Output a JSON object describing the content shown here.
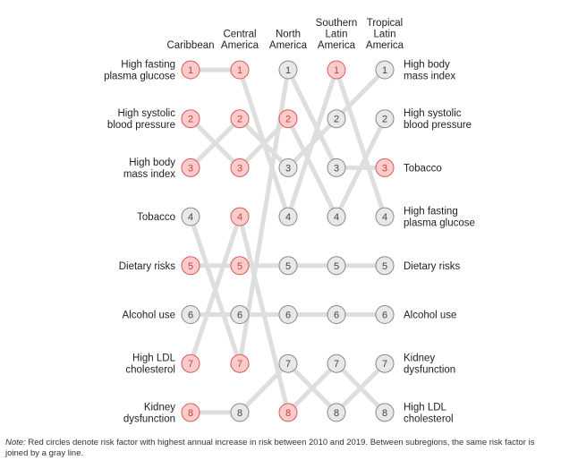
{
  "chart_data": {
    "type": "bump",
    "title": "",
    "subregions": [
      {
        "name": "Caribbean",
        "header": [
          "Caribbean"
        ]
      },
      {
        "name": "Central America",
        "header": [
          "Central",
          "America"
        ]
      },
      {
        "name": "North America",
        "header": [
          "North",
          "America"
        ]
      },
      {
        "name": "Southern Latin America",
        "header": [
          "Southern",
          "Latin",
          "America"
        ]
      },
      {
        "name": "Tropical Latin America",
        "header": [
          "Tropical",
          "Latin",
          "America"
        ]
      }
    ],
    "risk_factors": [
      {
        "name": "High fasting plasma glucose",
        "left_label": [
          "High fasting",
          "plasma glucose"
        ],
        "right_label": [
          "High fasting",
          "plasma glucose"
        ],
        "ranks": [
          1,
          1,
          4,
          1,
          4
        ],
        "highlight": [
          true,
          true,
          false,
          true,
          false
        ]
      },
      {
        "name": "High systolic blood pressure",
        "left_label": [
          "High systolic",
          "blood pressure"
        ],
        "right_label": [
          "High systolic",
          "blood pressure"
        ],
        "ranks": [
          2,
          3,
          2,
          4,
          2
        ],
        "highlight": [
          true,
          true,
          true,
          false,
          false
        ]
      },
      {
        "name": "High body mass index",
        "left_label": [
          "High body",
          "mass index"
        ],
        "right_label": [
          "High body",
          "mass index"
        ],
        "ranks": [
          3,
          2,
          3,
          2,
          1
        ],
        "highlight": [
          true,
          true,
          false,
          false,
          false
        ]
      },
      {
        "name": "Tobacco",
        "left_label": [
          "Tobacco"
        ],
        "right_label": [
          "Tobacco"
        ],
        "ranks": [
          4,
          7,
          1,
          3,
          3
        ],
        "highlight": [
          false,
          true,
          false,
          false,
          true
        ]
      },
      {
        "name": "Dietary risks",
        "left_label": [
          "Dietary risks"
        ],
        "right_label": [
          "Dietary risks"
        ],
        "ranks": [
          5,
          5,
          5,
          5,
          5
        ],
        "highlight": [
          true,
          true,
          false,
          false,
          false
        ]
      },
      {
        "name": "Alcohol use",
        "left_label": [
          "Alcohol use"
        ],
        "right_label": [
          "Alcohol use"
        ],
        "ranks": [
          6,
          6,
          6,
          6,
          6
        ],
        "highlight": [
          false,
          false,
          false,
          false,
          false
        ]
      },
      {
        "name": "High LDL cholesterol",
        "left_label": [
          "High LDL",
          "cholesterol"
        ],
        "right_label": [
          "High LDL",
          "cholesterol"
        ],
        "ranks": [
          7,
          4,
          8,
          7,
          8
        ],
        "highlight": [
          true,
          true,
          true,
          false,
          false
        ]
      },
      {
        "name": "Kidney dysfunction",
        "left_label": [
          "Kidney",
          "dysfunction"
        ],
        "right_label": [
          "Kidney",
          "dysfunction"
        ],
        "ranks": [
          8,
          8,
          7,
          8,
          7
        ],
        "highlight": [
          true,
          false,
          false,
          false,
          false
        ]
      }
    ],
    "colors": {
      "highlight_fill": "#f9cccc",
      "highlight_stroke": "#e05555",
      "highlight_text": "#d23c3c",
      "normal_fill": "#e8e8e8",
      "normal_stroke": "#888888",
      "normal_text": "#444444",
      "line": "#dedede"
    }
  },
  "note": {
    "prefix": "Note:",
    "text": " Red circles denote risk factor with highest annual increase in risk between 2010 and 2019. Between subregions, the same risk factor is joined by a gray line."
  }
}
